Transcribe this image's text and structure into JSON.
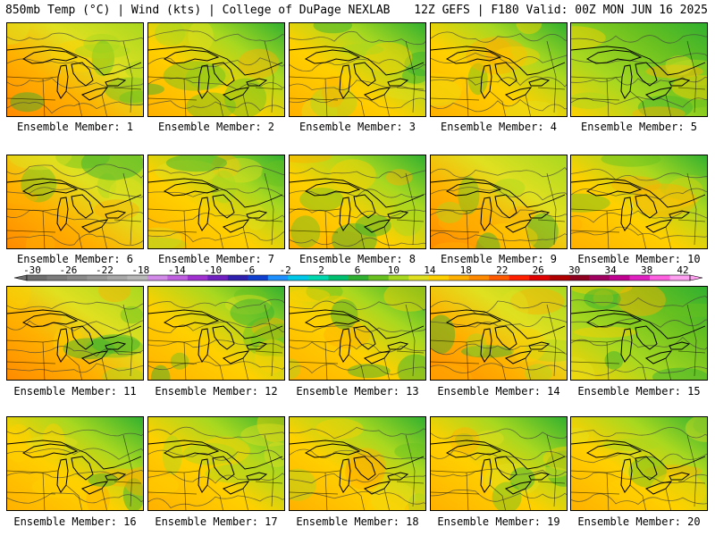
{
  "header": {
    "left": "850mb Temp (°C) | Wind (kts) | College of DuPage NEXLAB",
    "right": "12Z GEFS | F180 Valid: 00Z MON JUN 16 2025"
  },
  "panels": [
    {
      "label": "Ensemble Member: 1",
      "warmth": 0.55
    },
    {
      "label": "Ensemble Member: 2",
      "warmth": 0.45
    },
    {
      "label": "Ensemble Member: 3",
      "warmth": 0.5
    },
    {
      "label": "Ensemble Member: 4",
      "warmth": 0.5
    },
    {
      "label": "Ensemble Member: 5",
      "warmth": 0.3
    },
    {
      "label": "Ensemble Member: 6",
      "warmth": 0.6
    },
    {
      "label": "Ensemble Member: 7",
      "warmth": 0.45
    },
    {
      "label": "Ensemble Member: 8",
      "warmth": 0.5
    },
    {
      "label": "Ensemble Member: 9",
      "warmth": 0.55
    },
    {
      "label": "Ensemble Member: 10",
      "warmth": 0.45
    },
    {
      "label": "Ensemble Member: 11",
      "warmth": 0.6
    },
    {
      "label": "Ensemble Member: 12",
      "warmth": 0.45
    },
    {
      "label": "Ensemble Member: 13",
      "warmth": 0.45
    },
    {
      "label": "Ensemble Member: 14",
      "warmth": 0.55
    },
    {
      "label": "Ensemble Member: 15",
      "warmth": 0.35
    },
    {
      "label": "Ensemble Member: 16",
      "warmth": 0.5
    },
    {
      "label": "Ensemble Member: 17",
      "warmth": 0.45
    },
    {
      "label": "Ensemble Member: 18",
      "warmth": 0.5
    },
    {
      "label": "Ensemble Member: 19",
      "warmth": 0.45
    },
    {
      "label": "Ensemble Member: 20",
      "warmth": 0.5
    }
  ],
  "colorbar": {
    "tick_labels": [
      "-30",
      "-26",
      "-22",
      "-18",
      "-14",
      "-10",
      "-6",
      "-2",
      "2",
      "6",
      "10",
      "14",
      "18",
      "22",
      "26",
      "30",
      "34",
      "38",
      "42"
    ],
    "colors": [
      "#6e6e6e",
      "#7c7c7c",
      "#8a8a8a",
      "#989898",
      "#a8a8a8",
      "#b8b8b8",
      "#d28be8",
      "#c060e0",
      "#a030d0",
      "#7020c0",
      "#3020b0",
      "#1040d0",
      "#1e90ff",
      "#00c8e8",
      "#00d8b0",
      "#00c070",
      "#30b030",
      "#68c020",
      "#a8d820",
      "#e0e020",
      "#ffd000",
      "#ffb000",
      "#ff8a00",
      "#ff5a00",
      "#ff2000",
      "#e00000",
      "#b00000",
      "#900020",
      "#a00060",
      "#c00090",
      "#e020c0",
      "#ff60e0",
      "#ffa0f0"
    ]
  }
}
